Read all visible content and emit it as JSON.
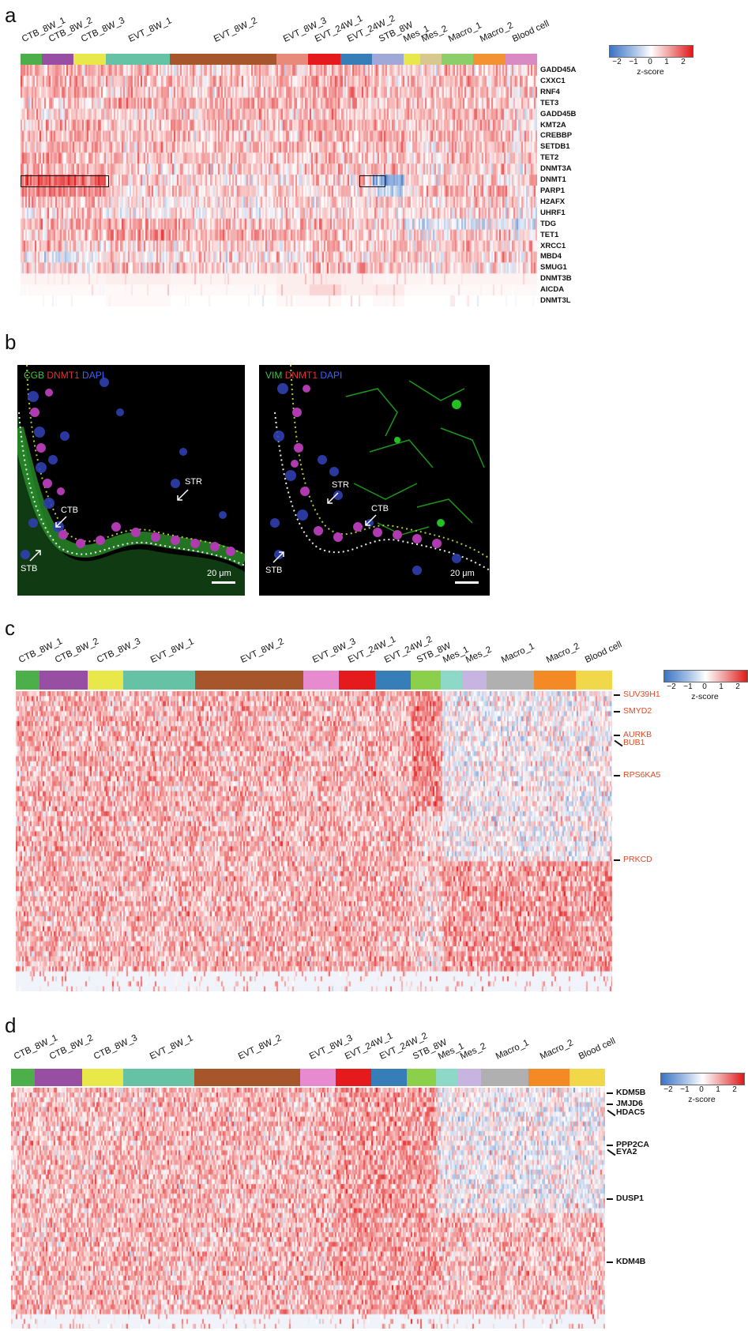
{
  "panels": {
    "a": {
      "letter": "a"
    },
    "b": {
      "letter": "b"
    },
    "c": {
      "letter": "c"
    },
    "d": {
      "letter": "d"
    }
  },
  "colors": {
    "high": "#e01818",
    "low": "#3b73c4",
    "mid": "#ffffff",
    "gene_highlight": "#e8471d"
  },
  "legend": {
    "title": "z-score",
    "ticks": [
      "−2",
      "−1",
      "0",
      "1",
      "2"
    ]
  },
  "clusters_a": [
    {
      "name": "CTB_8W_1",
      "color": "#4daf4a"
    },
    {
      "name": "CTB_8W_2",
      "color": "#984ea3"
    },
    {
      "name": "CTB_8W_3",
      "color": "#e8e84a"
    },
    {
      "name": "EVT_8W_1",
      "color": "#66c2a5"
    },
    {
      "name": "EVT_8W_2",
      "color": "#a6562a"
    },
    {
      "name": "EVT_8W_3",
      "color": "#e78a7a"
    },
    {
      "name": "EVT_24W_1",
      "color": "#e41a1c"
    },
    {
      "name": "EVT_24W_2",
      "color": "#377eb8"
    },
    {
      "name": "STB_8W",
      "color": "#9fa8d6"
    },
    {
      "name": "Mes_1",
      "color": "#e8e84a"
    },
    {
      "name": "Mes_2",
      "color": "#d8c890"
    },
    {
      "name": "Macro_1",
      "color": "#8ccf6a"
    },
    {
      "name": "Macro_2",
      "color": "#f39233"
    },
    {
      "name": "Blood cell",
      "color": "#d98ac4"
    }
  ],
  "clusters_cd": [
    {
      "name": "CTB_8W_1",
      "color": "#4daf4a"
    },
    {
      "name": "CTB_8W_2",
      "color": "#984ea3"
    },
    {
      "name": "CTB_8W_3",
      "color": "#e8e84a"
    },
    {
      "name": "EVT_8W_1",
      "color": "#66c2a5"
    },
    {
      "name": "EVT_8W_2",
      "color": "#a6562a"
    },
    {
      "name": "EVT_8W_3",
      "color": "#e78ad0"
    },
    {
      "name": "EVT_24W_1",
      "color": "#e41a1c"
    },
    {
      "name": "EVT_24W_2",
      "color": "#377eb8"
    },
    {
      "name": "STB_8W",
      "color": "#8ccf4a"
    },
    {
      "name": "Mes_1",
      "color": "#8ed8c8"
    },
    {
      "name": "Mes_2",
      "color": "#c8b4e0"
    },
    {
      "name": "Macro_1",
      "color": "#b0b0b0"
    },
    {
      "name": "Macro_2",
      "color": "#f38a26"
    },
    {
      "name": "Blood cell",
      "color": "#f0d84a"
    }
  ],
  "genes_a": [
    "GADD45A",
    "CXXC1",
    "RNF4",
    "TET3",
    "GADD45B",
    "KMT2A",
    "CREBBP",
    "SETDB1",
    "TET2",
    "DNMT3A",
    "DNMT1",
    "PARP1",
    "H2AFX",
    "UHRF1",
    "TDG",
    "TET1",
    "XRCC1",
    "MBD4",
    "SMUG1",
    "DNMT3B",
    "AICDA",
    "DNMT3L"
  ],
  "genes_c": [
    "SUV39H1",
    "SMYD2",
    "AURKB",
    "BUB1",
    "RPS6KA5",
    "PRKCD"
  ],
  "genes_d": [
    "KDM5B",
    "JMJD6",
    "HDAC5",
    "PPP2CA",
    "EYA2",
    "DUSP1",
    "KDM4B"
  ],
  "micro": {
    "left": {
      "stain": [
        {
          "text": "CGB",
          "color": "#37c837"
        },
        {
          "text": "DNMT1",
          "color": "#e53030"
        },
        {
          "text": "DAPI",
          "color": "#4060ff"
        }
      ],
      "labels": {
        "str": "STR",
        "ctb": "CTB",
        "stb": "STB"
      },
      "scale": "20 μm"
    },
    "right": {
      "stain": [
        {
          "text": "VIM",
          "color": "#37c837"
        },
        {
          "text": "DNMT1",
          "color": "#e53030"
        },
        {
          "text": "DAPI",
          "color": "#4060ff"
        }
      ],
      "labels": {
        "str": "STR",
        "ctb": "CTB",
        "stb": "STB"
      },
      "scale": "20 μm"
    }
  },
  "chart_data": [
    {
      "type": "heatmap",
      "panel": "a",
      "rows": [
        "GADD45A",
        "CXXC1",
        "RNF4",
        "TET3",
        "GADD45B",
        "KMT2A",
        "CREBBP",
        "SETDB1",
        "TET2",
        "DNMT3A",
        "DNMT1",
        "PARP1",
        "H2AFX",
        "UHRF1",
        "TDG",
        "TET1",
        "XRCC1",
        "MBD4",
        "SMUG1",
        "DNMT3B",
        "AICDA",
        "DNMT3L"
      ],
      "columns": [
        "CTB_8W_1",
        "CTB_8W_2",
        "CTB_8W_3",
        "EVT_8W_1",
        "EVT_8W_2",
        "EVT_8W_3",
        "EVT_24W_1",
        "EVT_24W_2",
        "STB_8W",
        "Mes_1",
        "Mes_2",
        "Macro_1",
        "Macro_2",
        "Blood cell"
      ],
      "column_weights": [
        2,
        3,
        3,
        6,
        10,
        3,
        3,
        3,
        3,
        1.5,
        2,
        3,
        3,
        3
      ],
      "values": [
        [
          0.6,
          0.5,
          0.6,
          0.4,
          0.3,
          0.4,
          0.7,
          0.6,
          0.3,
          0.2,
          0.3,
          0.5,
          0.4,
          0.4
        ],
        [
          0.5,
          0.5,
          0.5,
          0.5,
          0.4,
          0.5,
          0.6,
          0.5,
          0.3,
          0.3,
          0.3,
          0.4,
          0.4,
          0.3
        ],
        [
          0.4,
          0.5,
          0.5,
          0.4,
          0.4,
          0.5,
          0.6,
          0.6,
          0.4,
          0.4,
          0.3,
          0.5,
          0.5,
          0.4
        ],
        [
          0.3,
          0.3,
          0.3,
          0.7,
          0.6,
          0.5,
          0.6,
          0.5,
          0.2,
          0.4,
          0.5,
          0.5,
          0.4,
          0.3
        ],
        [
          0.3,
          0.3,
          0.3,
          0.4,
          0.4,
          0.4,
          0.6,
          0.4,
          0.2,
          0.5,
          0.6,
          0.5,
          0.5,
          0.3
        ],
        [
          0.6,
          0.6,
          0.6,
          0.5,
          0.5,
          0.5,
          0.6,
          0.5,
          0.3,
          0.3,
          0.3,
          0.4,
          0.4,
          0.3
        ],
        [
          0.5,
          0.5,
          0.5,
          0.4,
          0.4,
          0.4,
          0.6,
          0.5,
          0.7,
          0.4,
          0.4,
          0.5,
          0.5,
          0.4
        ],
        [
          0.5,
          0.5,
          0.5,
          0.4,
          0.4,
          0.5,
          0.5,
          0.5,
          0.6,
          0.3,
          0.3,
          0.4,
          0.4,
          0.3
        ],
        [
          0.6,
          0.6,
          0.6,
          0.4,
          0.4,
          0.4,
          0.5,
          0.5,
          0.4,
          0.3,
          0.3,
          0.4,
          0.4,
          0.3
        ],
        [
          0.5,
          0.6,
          0.6,
          0.3,
          0.3,
          0.3,
          0.4,
          0.4,
          0.5,
          0.2,
          0.2,
          0.3,
          0.3,
          0.2
        ],
        [
          1.2,
          1.3,
          1.3,
          0.3,
          0.2,
          0.3,
          0.3,
          0.2,
          -1.2,
          0.3,
          0.3,
          0.4,
          0.4,
          0.3
        ],
        [
          0.9,
          1.0,
          1.0,
          0.3,
          0.3,
          0.3,
          0.4,
          0.3,
          -0.5,
          0.4,
          0.4,
          0.5,
          0.5,
          0.4
        ],
        [
          0.5,
          0.5,
          0.5,
          0.2,
          0.2,
          0.3,
          0.3,
          0.3,
          0.2,
          0.3,
          0.3,
          0.3,
          0.3,
          0.3
        ],
        [
          0.4,
          0.4,
          0.4,
          0.2,
          0.1,
          0.2,
          0.2,
          0.2,
          0.0,
          0.2,
          0.2,
          0.2,
          0.2,
          0.2
        ],
        [
          0.5,
          0.5,
          0.5,
          0.6,
          0.5,
          0.5,
          0.5,
          0.4,
          0.3,
          -0.3,
          -0.3,
          -0.3,
          -0.2,
          -0.2
        ],
        [
          0.4,
          0.4,
          0.4,
          0.8,
          0.6,
          0.5,
          0.6,
          0.5,
          0.3,
          0.2,
          0.2,
          0.3,
          0.3,
          0.2
        ],
        [
          0.4,
          0.4,
          0.4,
          0.3,
          0.3,
          0.3,
          0.5,
          0.4,
          0.5,
          0.4,
          0.4,
          0.4,
          0.4,
          0.3
        ],
        [
          0.0,
          -0.2,
          0.0,
          0.2,
          0.2,
          0.2,
          0.3,
          0.2,
          0.3,
          0.3,
          0.3,
          0.3,
          0.3,
          0.3
        ],
        [
          0.3,
          0.3,
          0.3,
          0.4,
          0.3,
          0.4,
          0.5,
          0.4,
          0.3,
          0.2,
          0.2,
          0.3,
          0.3,
          0.2
        ],
        [
          0.2,
          0.2,
          0.2,
          0.3,
          0.2,
          0.3,
          0.4,
          0.3,
          0.2,
          0.2,
          0.2,
          0.2,
          0.2,
          0.2
        ],
        [
          0.1,
          0.1,
          0.1,
          0.1,
          0.1,
          0.3,
          0.9,
          0.3,
          0.4,
          0.1,
          0.1,
          0.1,
          0.1,
          0.1
        ],
        [
          0.0,
          0.0,
          0.0,
          0.1,
          0.0,
          0.1,
          0.1,
          0.0,
          0.1,
          0.0,
          0.0,
          0.0,
          0.0,
          0.0
        ]
      ],
      "highlight_boxes": [
        {
          "row": "DNMT1",
          "columns": [
            "CTB_8W_1",
            "CTB_8W_2",
            "CTB_8W_3"
          ]
        },
        {
          "row": "DNMT1",
          "columns": [
            "STB_8W"
          ]
        }
      ],
      "color_scale": {
        "min": -2,
        "max": 2,
        "label": "z-score"
      }
    },
    {
      "type": "heatmap",
      "panel": "c",
      "columns": [
        "CTB_8W_1",
        "CTB_8W_2",
        "CTB_8W_3",
        "EVT_8W_1",
        "EVT_8W_2",
        "EVT_8W_3",
        "EVT_24W_1",
        "EVT_24W_2",
        "STB_8W",
        "Mes_1",
        "Mes_2",
        "Macro_1",
        "Macro_2",
        "Blood cell"
      ],
      "column_weights": [
        2,
        4,
        3,
        6,
        9,
        3,
        3,
        3,
        2.5,
        1.8,
        2,
        4,
        3.5,
        3
      ],
      "labeled_rows": [
        "SUV39H1",
        "SMYD2",
        "AURKB",
        "BUB1",
        "RPS6KA5",
        "PRKCD"
      ],
      "row_count": 60,
      "color_scale": {
        "min": -2,
        "max": 2,
        "label": "z-score"
      }
    },
    {
      "type": "heatmap",
      "panel": "d",
      "columns": [
        "CTB_8W_1",
        "CTB_8W_2",
        "CTB_8W_3",
        "EVT_8W_1",
        "EVT_8W_2",
        "EVT_8W_3",
        "EVT_24W_1",
        "EVT_24W_2",
        "STB_8W",
        "Mes_1",
        "Mes_2",
        "Macro_1",
        "Macro_2",
        "Blood cell"
      ],
      "column_weights": [
        2,
        4,
        3.5,
        6,
        9,
        3,
        3,
        3,
        2.5,
        1.8,
        2,
        4,
        3.5,
        3
      ],
      "labeled_rows": [
        "KDM5B",
        "JMJD6",
        "HDAC5",
        "PPP2CA",
        "EYA2",
        "DUSP1",
        "KDM4B"
      ],
      "row_count": 50,
      "color_scale": {
        "min": -2,
        "max": 2,
        "label": "z-score"
      }
    }
  ]
}
